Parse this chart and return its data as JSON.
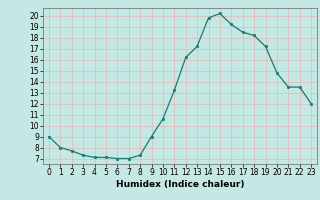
{
  "x": [
    0,
    1,
    2,
    3,
    4,
    5,
    6,
    7,
    8,
    9,
    10,
    11,
    12,
    13,
    14,
    15,
    16,
    17,
    18,
    19,
    20,
    21,
    22,
    23
  ],
  "y": [
    9.0,
    8.0,
    7.7,
    7.3,
    7.1,
    7.1,
    7.0,
    7.0,
    7.3,
    9.0,
    10.6,
    13.2,
    16.2,
    17.2,
    19.8,
    20.2,
    19.2,
    18.5,
    18.2,
    17.2,
    14.8,
    13.5,
    13.5,
    12.0
  ],
  "xlabel": "Humidex (Indice chaleur)",
  "xlim": [
    -0.5,
    23.5
  ],
  "ylim": [
    6.5,
    20.7
  ],
  "yticks": [
    7,
    8,
    9,
    10,
    11,
    12,
    13,
    14,
    15,
    16,
    17,
    18,
    19,
    20
  ],
  "xticks": [
    0,
    1,
    2,
    3,
    4,
    5,
    6,
    7,
    8,
    9,
    10,
    11,
    12,
    13,
    14,
    15,
    16,
    17,
    18,
    19,
    20,
    21,
    22,
    23
  ],
  "line_color": "#1a7a6e",
  "marker_color": "#1a7a6e",
  "bg_color": "#c5e8e5",
  "grid_color": "#e0b8b8",
  "label_fontsize": 6.5,
  "tick_fontsize": 5.5
}
